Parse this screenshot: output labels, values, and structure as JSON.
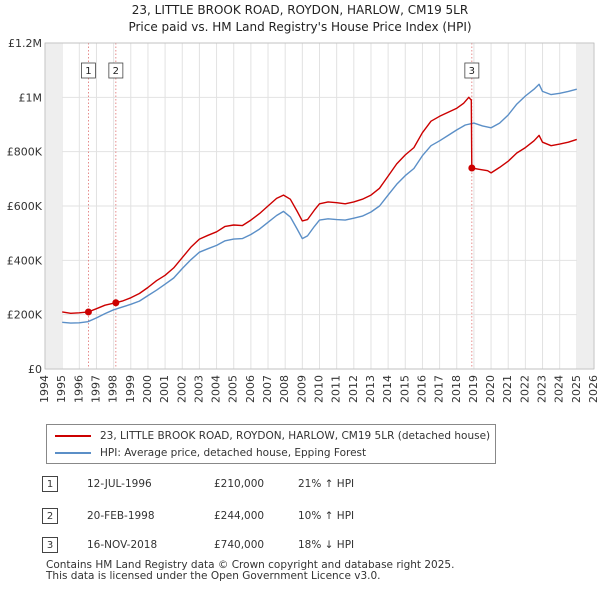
{
  "chart_data": {
    "type": "line",
    "title": [
      "23, LITTLE BROOK ROAD, ROYDON, HARLOW, CM19 5LR",
      "Price paid vs. HM Land Registry's House Price Index (HPI)"
    ],
    "xlabel": "",
    "ylabel": "",
    "xlim": [
      1994,
      2026
    ],
    "ylim": [
      0,
      1200000
    ],
    "x_ticks": [
      1994,
      1995,
      1996,
      1997,
      1998,
      1999,
      2000,
      2001,
      2002,
      2003,
      2004,
      2005,
      2006,
      2007,
      2008,
      2009,
      2010,
      2011,
      2012,
      2013,
      2014,
      2015,
      2016,
      2017,
      2018,
      2019,
      2020,
      2021,
      2022,
      2023,
      2024,
      2025,
      2026
    ],
    "y_ticks": [
      {
        "value": 0,
        "label": "£0"
      },
      {
        "value": 200000,
        "label": "£200K"
      },
      {
        "value": 400000,
        "label": "£400K"
      },
      {
        "value": 600000,
        "label": "£600K"
      },
      {
        "value": 800000,
        "label": "£800K"
      },
      {
        "value": 1000000,
        "label": "£1M"
      },
      {
        "value": 1200000,
        "label": "£1.2M"
      }
    ],
    "grid": true,
    "data_start": 1995.0,
    "data_end": 2025.0,
    "series": [
      {
        "name": "23, LITTLE BROOK ROAD, ROYDON, HARLOW, CM19 5LR (detached house)",
        "color": "#cc0000",
        "points": [
          [
            1995.0,
            210000
          ],
          [
            1995.5,
            205000
          ],
          [
            1996.0,
            207000
          ],
          [
            1996.53,
            210000
          ],
          [
            1997.0,
            222000
          ],
          [
            1997.5,
            235000
          ],
          [
            1998.13,
            244000
          ],
          [
            1998.5,
            250000
          ],
          [
            1999.0,
            262000
          ],
          [
            1999.5,
            278000
          ],
          [
            2000.0,
            300000
          ],
          [
            2000.5,
            325000
          ],
          [
            2001.0,
            345000
          ],
          [
            2001.5,
            372000
          ],
          [
            2002.0,
            410000
          ],
          [
            2002.5,
            448000
          ],
          [
            2003.0,
            478000
          ],
          [
            2003.5,
            492000
          ],
          [
            2004.0,
            505000
          ],
          [
            2004.5,
            525000
          ],
          [
            2005.0,
            530000
          ],
          [
            2005.5,
            528000
          ],
          [
            2006.0,
            548000
          ],
          [
            2006.5,
            572000
          ],
          [
            2007.0,
            600000
          ],
          [
            2007.5,
            628000
          ],
          [
            2007.9,
            640000
          ],
          [
            2008.3,
            625000
          ],
          [
            2008.7,
            580000
          ],
          [
            2009.0,
            545000
          ],
          [
            2009.3,
            550000
          ],
          [
            2009.7,
            585000
          ],
          [
            2010.0,
            608000
          ],
          [
            2010.5,
            615000
          ],
          [
            2011.0,
            612000
          ],
          [
            2011.5,
            608000
          ],
          [
            2012.0,
            615000
          ],
          [
            2012.5,
            625000
          ],
          [
            2013.0,
            640000
          ],
          [
            2013.5,
            665000
          ],
          [
            2014.0,
            710000
          ],
          [
            2014.5,
            755000
          ],
          [
            2015.0,
            788000
          ],
          [
            2015.5,
            815000
          ],
          [
            2016.0,
            870000
          ],
          [
            2016.5,
            912000
          ],
          [
            2017.0,
            930000
          ],
          [
            2017.5,
            945000
          ],
          [
            2018.0,
            960000
          ],
          [
            2018.4,
            978000
          ],
          [
            2018.7,
            1000000
          ],
          [
            2018.85,
            990000
          ],
          [
            2018.88,
            740000
          ],
          [
            2019.3,
            735000
          ],
          [
            2019.8,
            730000
          ],
          [
            2020.0,
            722000
          ],
          [
            2020.5,
            742000
          ],
          [
            2021.0,
            765000
          ],
          [
            2021.5,
            795000
          ],
          [
            2022.0,
            815000
          ],
          [
            2022.5,
            840000
          ],
          [
            2022.8,
            860000
          ],
          [
            2023.0,
            835000
          ],
          [
            2023.5,
            822000
          ],
          [
            2024.0,
            828000
          ],
          [
            2024.5,
            835000
          ],
          [
            2025.0,
            845000
          ]
        ],
        "markers": [
          {
            "label": "1",
            "x": 1996.53,
            "y": 210000
          },
          {
            "label": "2",
            "x": 1998.13,
            "y": 244000
          },
          {
            "label": "3",
            "x": 2018.88,
            "y": 740000
          }
        ]
      },
      {
        "name": "HPI: Average price, detached house, Epping Forest",
        "color": "#5b8fc7",
        "points": [
          [
            1995.0,
            172000
          ],
          [
            1995.5,
            169000
          ],
          [
            1996.0,
            170000
          ],
          [
            1996.5,
            174000
          ],
          [
            1997.0,
            188000
          ],
          [
            1997.5,
            204000
          ],
          [
            1998.0,
            218000
          ],
          [
            1998.5,
            228000
          ],
          [
            1999.0,
            238000
          ],
          [
            1999.5,
            250000
          ],
          [
            2000.0,
            270000
          ],
          [
            2000.5,
            290000
          ],
          [
            2001.0,
            312000
          ],
          [
            2001.5,
            335000
          ],
          [
            2002.0,
            370000
          ],
          [
            2002.5,
            402000
          ],
          [
            2003.0,
            430000
          ],
          [
            2003.5,
            443000
          ],
          [
            2004.0,
            455000
          ],
          [
            2004.5,
            472000
          ],
          [
            2005.0,
            478000
          ],
          [
            2005.5,
            480000
          ],
          [
            2006.0,
            495000
          ],
          [
            2006.5,
            515000
          ],
          [
            2007.0,
            540000
          ],
          [
            2007.5,
            565000
          ],
          [
            2007.9,
            580000
          ],
          [
            2008.3,
            560000
          ],
          [
            2008.7,
            515000
          ],
          [
            2009.0,
            480000
          ],
          [
            2009.3,
            490000
          ],
          [
            2009.7,
            525000
          ],
          [
            2010.0,
            548000
          ],
          [
            2010.5,
            553000
          ],
          [
            2011.0,
            550000
          ],
          [
            2011.5,
            548000
          ],
          [
            2012.0,
            555000
          ],
          [
            2012.5,
            563000
          ],
          [
            2013.0,
            578000
          ],
          [
            2013.5,
            600000
          ],
          [
            2014.0,
            640000
          ],
          [
            2014.5,
            680000
          ],
          [
            2015.0,
            712000
          ],
          [
            2015.5,
            738000
          ],
          [
            2016.0,
            785000
          ],
          [
            2016.5,
            822000
          ],
          [
            2017.0,
            840000
          ],
          [
            2017.5,
            860000
          ],
          [
            2018.0,
            880000
          ],
          [
            2018.5,
            898000
          ],
          [
            2019.0,
            905000
          ],
          [
            2019.5,
            895000
          ],
          [
            2020.0,
            888000
          ],
          [
            2020.5,
            905000
          ],
          [
            2021.0,
            935000
          ],
          [
            2021.5,
            975000
          ],
          [
            2022.0,
            1005000
          ],
          [
            2022.5,
            1030000
          ],
          [
            2022.8,
            1048000
          ],
          [
            2023.0,
            1022000
          ],
          [
            2023.5,
            1010000
          ],
          [
            2024.0,
            1015000
          ],
          [
            2024.5,
            1022000
          ],
          [
            2025.0,
            1030000
          ]
        ]
      }
    ],
    "transaction_lines": [
      1996.53,
      1998.13,
      2018.88
    ]
  },
  "legend": {
    "property_label": "23, LITTLE BROOK ROAD, ROYDON, HARLOW, CM19 5LR (detached house)",
    "hpi_label": "HPI: Average price, detached house, Epping Forest",
    "property_color": "#cc0000",
    "hpi_color": "#5b8fc7"
  },
  "transactions": [
    {
      "num": "1",
      "date": "12-JUL-1996",
      "price": "£210,000",
      "hpi": "21% ↑ HPI"
    },
    {
      "num": "2",
      "date": "20-FEB-1998",
      "price": "£244,000",
      "hpi": "10% ↑ HPI"
    },
    {
      "num": "3",
      "date": "16-NOV-2018",
      "price": "£740,000",
      "hpi": "18% ↓ HPI"
    }
  ],
  "footer": {
    "line1": "Contains HM Land Registry data © Crown copyright and database right 2025.",
    "line2": "This data is licensed under the Open Government Licence v3.0."
  }
}
